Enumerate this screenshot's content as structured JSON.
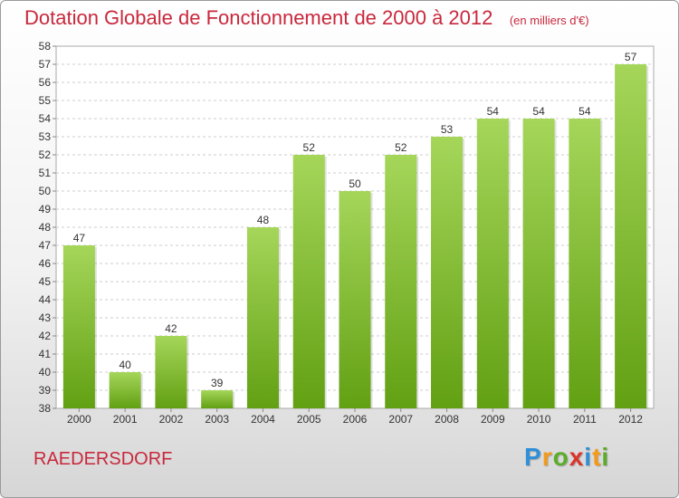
{
  "chart_data": {
    "type": "bar",
    "title": "Dotation Globale de Fonctionnement de 2000 à 2012",
    "subtitle": "(en milliers d'€)",
    "categories": [
      "2000",
      "2001",
      "2002",
      "2003",
      "2004",
      "2005",
      "2006",
      "2007",
      "2008",
      "2009",
      "2010",
      "2011",
      "2012"
    ],
    "values": [
      47,
      40,
      42,
      39,
      48,
      52,
      50,
      52,
      53,
      54,
      54,
      54,
      57
    ],
    "ylim": [
      38,
      58
    ],
    "yticks": [
      38,
      39,
      40,
      41,
      42,
      43,
      44,
      45,
      46,
      47,
      48,
      49,
      50,
      51,
      52,
      53,
      54,
      55,
      56,
      57,
      58
    ],
    "xlabel": "",
    "ylabel": "",
    "grid": "horizontal-dashed",
    "bar_color_top": "#a5d65a",
    "bar_color_bottom": "#62a013",
    "text_color": "#c8283c"
  },
  "footer": {
    "commune": "RAEDERSDORF",
    "brand": {
      "text": "Proxiti",
      "letters": [
        {
          "char": "P",
          "color": "#2f8fd8"
        },
        {
          "char": "r",
          "color": "#f39a1b"
        },
        {
          "char": "o",
          "color": "#5aad2a"
        },
        {
          "char": "x",
          "color": "#d9362b"
        },
        {
          "char": "i",
          "color": "#2f8fd8"
        },
        {
          "char": "t",
          "color": "#f39a1b"
        },
        {
          "char": "i",
          "color": "#5aad2a"
        }
      ]
    }
  }
}
